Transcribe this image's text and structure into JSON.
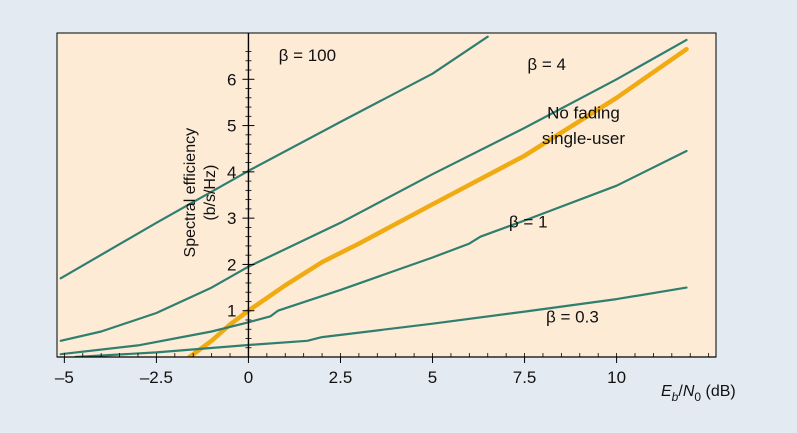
{
  "chart_data": {
    "type": "line",
    "xlabel": "Eb/N0 (dB)",
    "xlabel_parts": {
      "symbol_main": "E",
      "symbol_sub": "b",
      "slash": "/",
      "symbol2_main": "N",
      "symbol2_sub": "0",
      "unit": " (dB)"
    },
    "ylabel": "Spectral efficiency",
    "ylabel_unit": "(b/s/Hz)",
    "xlim": [
      -5.2,
      12.7
    ],
    "ylim": [
      0,
      7.0
    ],
    "x_ticks": [
      -5,
      -2.5,
      0,
      2.5,
      5,
      7.5,
      10
    ],
    "x_tick_labels": [
      "–5",
      "–2.5",
      "0",
      "2.5",
      "5",
      "7.5",
      "10"
    ],
    "y_ticks": [
      1,
      2,
      3,
      4,
      5,
      6
    ],
    "y_tick_labels": [
      "1",
      "2",
      "3",
      "4",
      "5",
      "6"
    ],
    "grid": false,
    "background": "#fdebd6",
    "series": [
      {
        "name": "β = 100",
        "color": "#2f7f70",
        "width": 2.2,
        "points": [
          [
            -5.1,
            1.7
          ],
          [
            -2.5,
            2.9
          ],
          [
            0,
            4.02
          ],
          [
            2.5,
            5.08
          ],
          [
            5,
            6.12
          ],
          [
            6.5,
            6.92
          ]
        ]
      },
      {
        "name": "β = 4",
        "color": "#2f7f70",
        "width": 2.2,
        "points": [
          [
            -5.1,
            0.35
          ],
          [
            -4,
            0.55
          ],
          [
            -2.5,
            0.95
          ],
          [
            -1,
            1.5
          ],
          [
            0,
            1.95
          ],
          [
            2.5,
            2.9
          ],
          [
            5,
            3.95
          ],
          [
            7.5,
            4.95
          ],
          [
            10,
            6.0
          ],
          [
            11.9,
            6.85
          ]
        ]
      },
      {
        "name": "No fading single-user",
        "color": "#f0aa12",
        "width": 4.5,
        "points": [
          [
            -1.6,
            0.0
          ],
          [
            -1,
            0.35
          ],
          [
            -0.5,
            0.7
          ],
          [
            0,
            1.0
          ],
          [
            1,
            1.55
          ],
          [
            2,
            2.05
          ],
          [
            3,
            2.45
          ],
          [
            5,
            3.3
          ],
          [
            7.5,
            4.35
          ],
          [
            10,
            5.6
          ],
          [
            11.9,
            6.65
          ]
        ]
      },
      {
        "name": "β = 1",
        "color": "#2f7f70",
        "width": 2.2,
        "points": [
          [
            -5.1,
            0.06
          ],
          [
            -3,
            0.25
          ],
          [
            -1,
            0.55
          ],
          [
            0,
            0.75
          ],
          [
            0.6,
            0.88
          ],
          [
            0.8,
            1.0
          ],
          [
            2.5,
            1.45
          ],
          [
            5,
            2.15
          ],
          [
            6.0,
            2.45
          ],
          [
            6.3,
            2.6
          ],
          [
            7.5,
            2.95
          ],
          [
            10,
            3.7
          ],
          [
            11.9,
            4.45
          ]
        ]
      },
      {
        "name": "β = 0.3",
        "color": "#2f7f70",
        "width": 2.2,
        "points": [
          [
            -4.7,
            0.0
          ],
          [
            -2.5,
            0.1
          ],
          [
            0,
            0.26
          ],
          [
            1.6,
            0.35
          ],
          [
            2,
            0.43
          ],
          [
            5,
            0.72
          ],
          [
            7.5,
            0.98
          ],
          [
            10,
            1.25
          ],
          [
            11.9,
            1.5
          ]
        ]
      }
    ],
    "annotations": [
      {
        "text": "β = 100",
        "x": 1.6,
        "y": 6.4
      },
      {
        "text": "β = 4",
        "x": 8.1,
        "y": 6.2
      },
      {
        "text": "No fading",
        "x": 9.1,
        "y": 5.15
      },
      {
        "text": "single-user",
        "x": 9.1,
        "y": 4.6
      },
      {
        "text": "β = 1",
        "x": 7.6,
        "y": 2.8
      },
      {
        "text": "β = 0.3",
        "x": 8.8,
        "y": 0.75
      }
    ]
  }
}
